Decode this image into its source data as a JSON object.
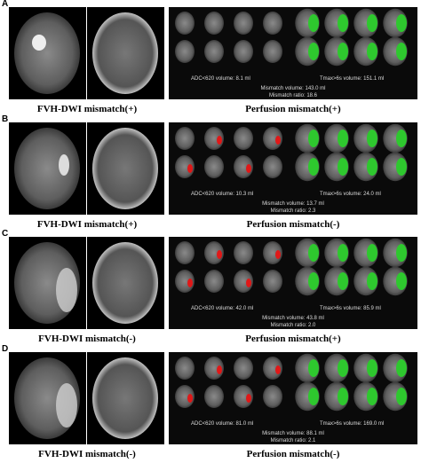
{
  "panels": [
    {
      "label": "A",
      "left_caption": "FVH-DWI mismatch(+)",
      "right_caption": "Perfusion mismatch(+)",
      "adc": "ADC<620 volume: 8.1 ml",
      "tmax": "Tmax>6s volume: 151.1 ml",
      "mismatch_volume": "Mismatch volume: 143.0 ml",
      "mismatch_ratio": "Mismatch ratio: 18.6"
    },
    {
      "label": "B",
      "left_caption": "FVH-DWI mismatch(+)",
      "right_caption": "Perfusion mismatch(-)",
      "adc": "ADC<620 volume: 10.3 ml",
      "tmax": "Tmax>6s volume: 24.0 ml",
      "mismatch_volume": "Mismatch volume: 13.7 ml",
      "mismatch_ratio": "Mismatch ratio: 2.3"
    },
    {
      "label": "C",
      "left_caption": "FVH-DWI mismatch(-)",
      "right_caption": "Perfusion mismatch(+)",
      "adc": "ADC<620 volume: 42.0 ml",
      "tmax": "Tmax>6s volume: 85.9 ml",
      "mismatch_volume": "Mismatch volume: 43.8 ml",
      "mismatch_ratio": "Mismatch ratio: 2.0"
    },
    {
      "label": "D",
      "left_caption": "FVH-DWI mismatch(-)",
      "right_caption": "Perfusion mismatch(-)",
      "adc": "ADC<620 volume: 81.0 ml",
      "tmax": "Tmax>6s volume: 169.0 ml",
      "mismatch_volume": "Mismatch volume: 88.1 ml",
      "mismatch_ratio": "Mismatch ratio: 2.1"
    }
  ]
}
